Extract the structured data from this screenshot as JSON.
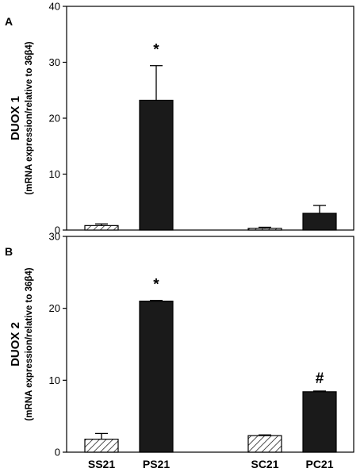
{
  "chart_data": [
    {
      "type": "bar",
      "panel": "A",
      "ylabel": "DUOX 1",
      "ylabel_sub": "(mRNA expression/relative to 36β4)",
      "ylim": [
        0,
        40
      ],
      "yticks": [
        0,
        10,
        20,
        30,
        40
      ],
      "categories": [
        "SS21",
        "PS21",
        "SC21",
        "PC21"
      ],
      "values": [
        0.8,
        23.2,
        0.3,
        3.0
      ],
      "errors": [
        0.3,
        6.2,
        0.2,
        1.4
      ],
      "annotations": [
        "",
        "*",
        "",
        ""
      ],
      "show_category_labels": false
    },
    {
      "type": "bar",
      "panel": "B",
      "ylabel": "DUOX 2",
      "ylabel_sub": "(mRNA expression/relative to 36β4)",
      "ylim": [
        0,
        30
      ],
      "yticks": [
        0,
        10,
        20,
        30
      ],
      "categories": [
        "SS21",
        "PS21",
        "SC21",
        "PC21"
      ],
      "values": [
        1.8,
        21.0,
        2.3,
        8.4
      ],
      "errors": [
        0.8,
        0.1,
        0.1,
        0.1
      ],
      "annotations": [
        "",
        "*",
        "",
        "#"
      ],
      "show_category_labels": true
    }
  ],
  "colors": {
    "shaded_bar": "#1a1a1a",
    "hatched_bar_fill": "#ffffff",
    "axis": "#000000"
  },
  "bar_patterns": [
    "hatched",
    "solid",
    "hatched",
    "solid"
  ]
}
